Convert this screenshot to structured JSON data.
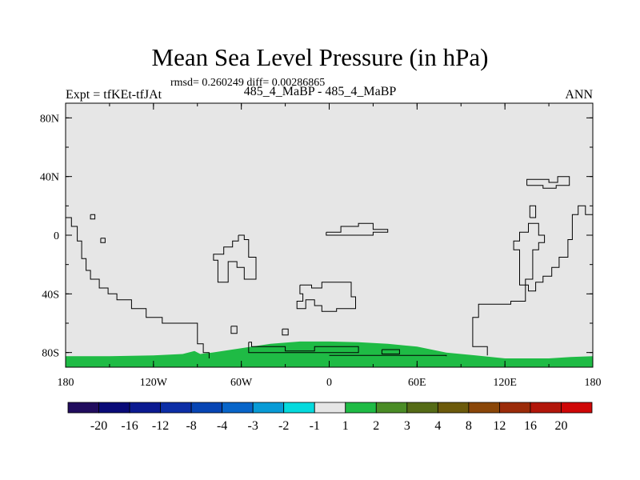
{
  "header": {
    "title": "Mean Sea Level Pressure (in hPa)",
    "stats": "rmsd= 0.260249 diff= 0.00286865",
    "subtitle": "485_4_MaBP - 485_4_MaBP",
    "left_string": "Expt = tfKEt-tfJAt",
    "right_string": "ANN"
  },
  "chart_data": {
    "type": "heatmap",
    "title": "Mean Sea Level Pressure (in hPa)",
    "xlabel": "",
    "ylabel": "",
    "xlim": [
      -180,
      180
    ],
    "ylim": [
      -90,
      90
    ],
    "x_ticks": [
      {
        "value": -180,
        "label": "180"
      },
      {
        "value": -120,
        "label": "120W"
      },
      {
        "value": -60,
        "label": "60W"
      },
      {
        "value": 0,
        "label": "0"
      },
      {
        "value": 60,
        "label": "60E"
      },
      {
        "value": 120,
        "label": "120E"
      },
      {
        "value": 180,
        "label": "180"
      }
    ],
    "y_ticks": [
      {
        "value": 80,
        "label": "80N"
      },
      {
        "value": 40,
        "label": "40N"
      },
      {
        "value": 0,
        "label": "0"
      },
      {
        "value": -40,
        "label": "40S"
      },
      {
        "value": -80,
        "label": "80S"
      }
    ],
    "field": {
      "background_range": [
        -1,
        1
      ],
      "background_color": "#e6e6e6",
      "region_range": [
        1,
        2
      ],
      "region_color": "#1fbb45",
      "region_boundary": [
        [
          -180,
          -90
        ],
        [
          -180,
          -82.5
        ],
        [
          -150,
          -82.5
        ],
        [
          -120,
          -82
        ],
        [
          -100,
          -81
        ],
        [
          -92,
          -79
        ],
        [
          -88,
          -81
        ],
        [
          -80,
          -80
        ],
        [
          -60,
          -77
        ],
        [
          -40,
          -74
        ],
        [
          -20,
          -72.5
        ],
        [
          0,
          -72.5
        ],
        [
          20,
          -73
        ],
        [
          40,
          -74
        ],
        [
          60,
          -76
        ],
        [
          70,
          -78
        ],
        [
          80,
          -80
        ],
        [
          100,
          -82
        ],
        [
          120,
          -84
        ],
        [
          150,
          -84
        ],
        [
          165,
          -83
        ],
        [
          180,
          -82.5
        ],
        [
          180,
          -90
        ]
      ]
    },
    "colorbar": {
      "orientation": "horizontal",
      "colors": [
        "#210c5e",
        "#090a78",
        "#0b1a91",
        "#0c2ea6",
        "#0745b4",
        "#0865c9",
        "#089bd6",
        "#05dadd",
        "#e6e6e6",
        "#1fbb45",
        "#4a8c26",
        "#556b16",
        "#6c5a0b",
        "#8a4608",
        "#9b2b09",
        "#b2160a",
        "#cf0707"
      ],
      "labels": [
        "-20",
        "-16",
        "-12",
        "-8",
        "-4",
        "-3",
        "-2",
        "-1",
        "1",
        "2",
        "3",
        "4",
        "8",
        "12",
        "16",
        "20"
      ]
    },
    "coastlines": [
      [
        [
          -180,
          12
        ],
        [
          -176,
          12
        ],
        [
          -176,
          6
        ],
        [
          -172,
          6
        ],
        [
          -172,
          -4
        ],
        [
          -169,
          -4
        ],
        [
          -169,
          -16
        ],
        [
          -166,
          -16
        ],
        [
          -166,
          -24
        ],
        [
          -163,
          -24
        ],
        [
          -163,
          -30
        ],
        [
          -157,
          -30
        ],
        [
          -157,
          -36
        ],
        [
          -151,
          -36
        ],
        [
          -151,
          -40
        ],
        [
          -145,
          -40
        ],
        [
          -145,
          -44
        ],
        [
          -135,
          -44
        ],
        [
          -135,
          -50
        ],
        [
          -125,
          -50
        ],
        [
          -125,
          -56
        ],
        [
          -114,
          -56
        ],
        [
          -114,
          -60
        ],
        [
          -90,
          -60
        ],
        [
          -90,
          -74
        ],
        [
          -86,
          -74
        ],
        [
          -86,
          -80
        ],
        [
          -82,
          -80
        ],
        [
          -82,
          -84
        ]
      ],
      [
        [
          -163,
          14
        ],
        [
          -160,
          14
        ],
        [
          -160,
          11
        ],
        [
          -163,
          11
        ],
        [
          -163,
          14
        ]
      ],
      [
        [
          -156,
          -2
        ],
        [
          -153,
          -2
        ],
        [
          -153,
          -5
        ],
        [
          -156,
          -5
        ],
        [
          -156,
          -2
        ]
      ],
      [
        [
          -62,
          0
        ],
        [
          -58,
          0
        ],
        [
          -58,
          -3
        ],
        [
          -55,
          -3
        ],
        [
          -55,
          -15
        ],
        [
          -50,
          -15
        ],
        [
          -50,
          -30
        ],
        [
          -58,
          -30
        ],
        [
          -58,
          -22
        ],
        [
          -63,
          -22
        ],
        [
          -63,
          -18
        ],
        [
          -69,
          -18
        ],
        [
          -69,
          -32
        ],
        [
          -76,
          -32
        ],
        [
          -76,
          -17
        ],
        [
          -79,
          -17
        ],
        [
          -79,
          -13
        ],
        [
          -72,
          -13
        ],
        [
          -72,
          -8
        ],
        [
          -66,
          -8
        ],
        [
          -66,
          -4
        ],
        [
          -62,
          -4
        ],
        [
          -62,
          0
        ]
      ],
      [
        [
          -67,
          -62
        ],
        [
          -63,
          -62
        ],
        [
          -63,
          -67
        ],
        [
          -67,
          -67
        ],
        [
          -67,
          -62
        ]
      ],
      [
        [
          -32,
          -64
        ],
        [
          -28,
          -64
        ],
        [
          -28,
          -68
        ],
        [
          -32,
          -68
        ],
        [
          -32,
          -64
        ]
      ],
      [
        [
          -55,
          -73
        ],
        [
          -53,
          -73
        ],
        [
          -53,
          -76
        ],
        [
          -30,
          -76
        ],
        [
          -30,
          -79
        ],
        [
          -10,
          -79
        ],
        [
          -10,
          -76
        ],
        [
          20,
          -76
        ],
        [
          20,
          -80
        ],
        [
          -55,
          -80
        ],
        [
          -55,
          -73
        ]
      ],
      [
        [
          -20,
          -34
        ],
        [
          -12,
          -34
        ],
        [
          -12,
          -36
        ],
        [
          -5,
          -36
        ],
        [
          -5,
          -32
        ],
        [
          15,
          -32
        ],
        [
          15,
          -42
        ],
        [
          18,
          -42
        ],
        [
          18,
          -50
        ],
        [
          5,
          -50
        ],
        [
          5,
          -52
        ],
        [
          -5,
          -52
        ],
        [
          -5,
          -48
        ],
        [
          -10,
          -48
        ],
        [
          -10,
          -44
        ],
        [
          -16,
          -44
        ],
        [
          -16,
          -50
        ],
        [
          -22,
          -50
        ],
        [
          -22,
          -45
        ],
        [
          -18,
          -45
        ],
        [
          -18,
          -40
        ],
        [
          -20,
          -40
        ],
        [
          -20,
          -34
        ]
      ],
      [
        [
          -2,
          2
        ],
        [
          8,
          2
        ],
        [
          8,
          6
        ],
        [
          20,
          6
        ],
        [
          20,
          8
        ],
        [
          30,
          8
        ],
        [
          30,
          4
        ],
        [
          40,
          4
        ],
        [
          40,
          2
        ],
        [
          30,
          2
        ],
        [
          30,
          0
        ],
        [
          -2,
          0
        ],
        [
          -2,
          2
        ]
      ],
      [
        [
          36,
          -78
        ],
        [
          48,
          -78
        ],
        [
          48,
          -81
        ],
        [
          36,
          -81
        ],
        [
          36,
          -78
        ]
      ],
      [
        [
          0,
          -82
        ],
        [
          60,
          -82
        ],
        [
          80,
          -82
        ],
        [
          80,
          -82.5
        ]
      ],
      [
        [
          108,
          -82
        ],
        [
          108,
          -76
        ],
        [
          98,
          -76
        ],
        [
          98,
          -56
        ],
        [
          102,
          -56
        ],
        [
          102,
          -47
        ],
        [
          124,
          -47
        ],
        [
          124,
          -45
        ],
        [
          134,
          -45
        ],
        [
          134,
          -30
        ],
        [
          139,
          -30
        ],
        [
          139,
          -10
        ],
        [
          143,
          -10
        ],
        [
          143,
          -5
        ],
        [
          147,
          -5
        ],
        [
          147,
          0
        ],
        [
          143,
          0
        ],
        [
          143,
          8
        ],
        [
          136,
          8
        ],
        [
          136,
          2
        ],
        [
          130,
          2
        ],
        [
          130,
          -4
        ],
        [
          126,
          -4
        ],
        [
          126,
          -10
        ],
        [
          130,
          -10
        ],
        [
          130,
          -34
        ],
        [
          136,
          -34
        ],
        [
          136,
          -38
        ],
        [
          141,
          -38
        ],
        [
          141,
          -32
        ],
        [
          146,
          -32
        ],
        [
          146,
          -28
        ],
        [
          152,
          -28
        ],
        [
          152,
          -22
        ],
        [
          157,
          -22
        ],
        [
          157,
          -15
        ],
        [
          163,
          -15
        ],
        [
          163,
          -3
        ],
        [
          166,
          -3
        ],
        [
          166,
          14
        ],
        [
          170,
          14
        ],
        [
          170,
          20
        ],
        [
          175,
          20
        ],
        [
          175,
          14
        ],
        [
          180,
          14
        ]
      ],
      [
        [
          135,
          34
        ],
        [
          135,
          38
        ],
        [
          150,
          38
        ],
        [
          150,
          36
        ],
        [
          156,
          36
        ],
        [
          156,
          40
        ],
        [
          164,
          40
        ],
        [
          164,
          34
        ],
        [
          155,
          34
        ],
        [
          155,
          32
        ],
        [
          146,
          32
        ],
        [
          146,
          34
        ],
        [
          135,
          34
        ]
      ],
      [
        [
          137,
          12
        ],
        [
          141,
          12
        ],
        [
          141,
          20
        ],
        [
          137,
          20
        ],
        [
          137,
          12
        ]
      ]
    ]
  }
}
